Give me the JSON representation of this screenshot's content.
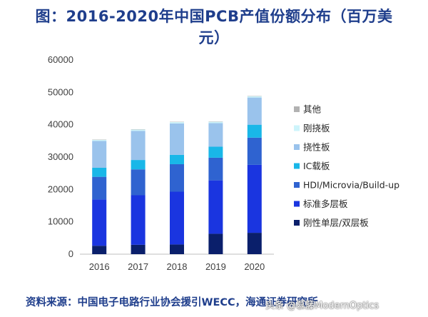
{
  "title_line1": "图：2016-2020年中国PCB产值份额分布（百万美",
  "title_line2": "元）",
  "source": "资料来源：中国电子电路行业协会援引WECC，海通证券研究所",
  "watermark": "头条 @慕藤ModernOptics",
  "chart_data": {
    "type": "bar",
    "stacked": true,
    "categories": [
      "2016",
      "2017",
      "2018",
      "2019",
      "2020"
    ],
    "ylim": [
      0,
      60000
    ],
    "yticks": [
      0,
      10000,
      20000,
      30000,
      40000,
      50000,
      60000
    ],
    "ytick_labels": [
      "0",
      "10000",
      "20000",
      "30000",
      "40000",
      "50000",
      "60000"
    ],
    "series": [
      {
        "name": "刚性单层/双层板",
        "color": "#0a1f6b",
        "values": [
          2600,
          2900,
          3000,
          6300,
          6600
        ]
      },
      {
        "name": "标准多层板",
        "color": "#1a35e0",
        "values": [
          14300,
          15300,
          16300,
          16500,
          21000
        ]
      },
      {
        "name": "HDI/Microvia/Build-up",
        "color": "#2f63d0",
        "values": [
          7000,
          8000,
          8500,
          7000,
          8400
        ]
      },
      {
        "name": "IC载板",
        "color": "#19b7e8",
        "values": [
          2800,
          2900,
          2900,
          3400,
          4000
        ]
      },
      {
        "name": "挠性板",
        "color": "#9ac3ec",
        "values": [
          8300,
          9000,
          9700,
          7300,
          8400
        ]
      },
      {
        "name": "刚挠板",
        "color": "#cdf4fb",
        "values": [
          300,
          400,
          400,
          400,
          400
        ]
      },
      {
        "name": "其他",
        "color": "#b2b2b2",
        "values": [
          100,
          100,
          100,
          100,
          100
        ]
      }
    ],
    "legend_position": "right",
    "grid": false
  }
}
